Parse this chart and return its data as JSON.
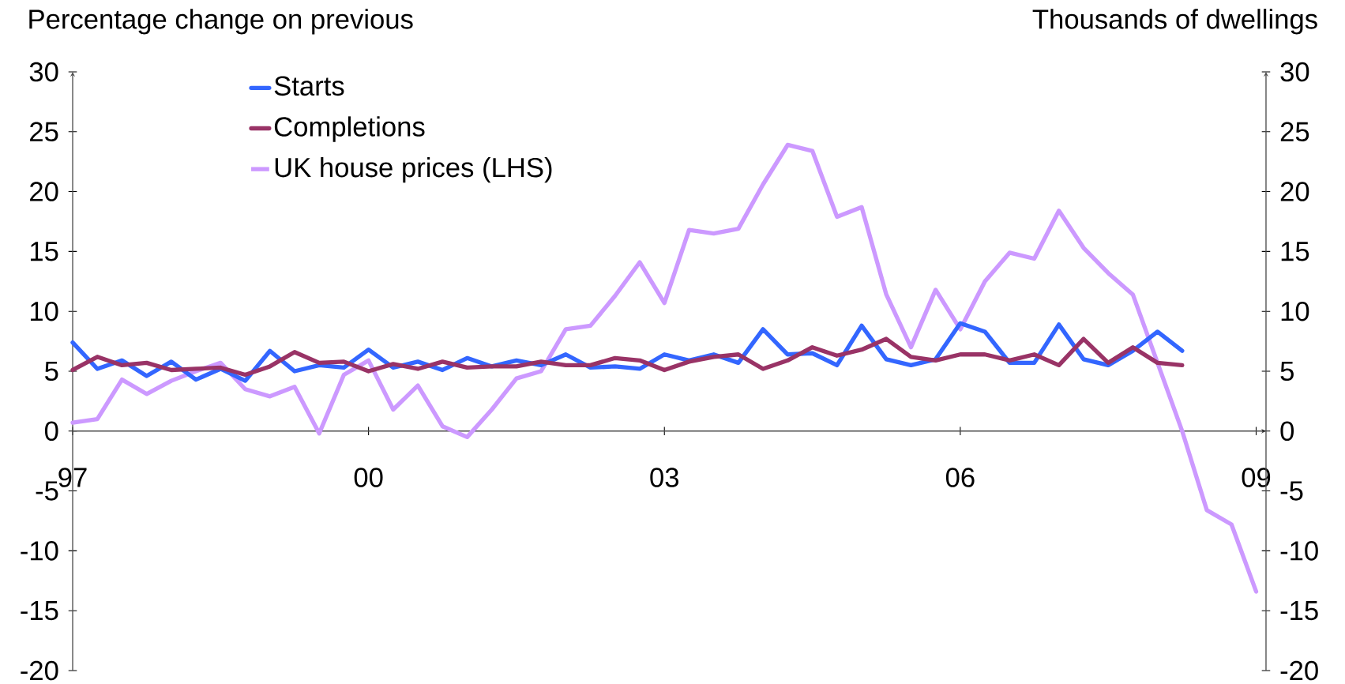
{
  "chart_data": {
    "type": "line",
    "ylabel": "Percentage change on previous",
    "y2label": "Thousands of dwellings",
    "x": [
      1997,
      1997.25,
      1997.5,
      1997.75,
      1998,
      1998.25,
      1998.5,
      1998.75,
      1999,
      1999.25,
      1999.5,
      1999.75,
      2000,
      2000.25,
      2000.5,
      2000.75,
      2001,
      2001.25,
      2001.5,
      2001.75,
      2002,
      2002.25,
      2002.5,
      2002.75,
      2003,
      2003.25,
      2003.5,
      2003.75,
      2004,
      2004.25,
      2004.5,
      2004.75,
      2005,
      2005.25,
      2005.5,
      2005.75,
      2006,
      2006.25,
      2006.5,
      2006.75,
      2007,
      2007.25,
      2007.5,
      2007.75,
      2008,
      2008.25,
      2008.5,
      2008.75,
      2009
    ],
    "xlim": [
      1997,
      2009.1
    ],
    "xticks": [
      {
        "value": 1997,
        "label": "97"
      },
      {
        "value": 2000,
        "label": "00"
      },
      {
        "value": 2003,
        "label": "03"
      },
      {
        "value": 2006,
        "label": "06"
      },
      {
        "value": 2009,
        "label": "09"
      }
    ],
    "ylim": [
      -20,
      30
    ],
    "yticks": [
      -20,
      -15,
      -10,
      -5,
      0,
      5,
      10,
      15,
      20,
      25,
      30
    ],
    "y2lim": [
      -20,
      30
    ],
    "y2ticks": [
      -20,
      -15,
      -10,
      -5,
      0,
      5,
      10,
      15,
      20,
      25,
      30
    ],
    "legend": "top left",
    "series": [
      {
        "name": "Starts",
        "color": "#3366ff",
        "axis": "y2",
        "x": [
          1997,
          1997.25,
          1997.5,
          1997.75,
          1998,
          1998.25,
          1998.5,
          1998.75,
          1999,
          1999.25,
          1999.5,
          1999.75,
          2000,
          2000.25,
          2000.5,
          2000.75,
          2001,
          2001.25,
          2001.5,
          2001.75,
          2002,
          2002.25,
          2002.5,
          2002.75,
          2003,
          2003.25,
          2003.5,
          2003.75,
          2004,
          2004.25,
          2004.5,
          2004.75,
          2005,
          2005.25,
          2005.5,
          2005.75,
          2006,
          2006.25,
          2006.5,
          2006.75,
          2007,
          2007.25,
          2007.5,
          2007.75,
          2008,
          2008.25
        ],
        "values": [
          7.4,
          5.2,
          5.9,
          4.6,
          5.8,
          4.3,
          5.2,
          4.2,
          6.7,
          5.0,
          5.5,
          5.3,
          6.8,
          5.3,
          5.8,
          5.1,
          6.1,
          5.4,
          5.9,
          5.5,
          6.4,
          5.3,
          5.4,
          5.2,
          6.4,
          5.9,
          6.4,
          5.7,
          8.5,
          6.4,
          6.5,
          5.5,
          8.8,
          6.0,
          5.5,
          6.0,
          9.0,
          8.3,
          5.7,
          5.7,
          8.9,
          6.0,
          5.5,
          6.7,
          8.3,
          6.7
        ]
      },
      {
        "name": "Completions",
        "color": "#993366",
        "axis": "y2",
        "x": [
          1997,
          1997.25,
          1997.5,
          1997.75,
          1998,
          1998.25,
          1998.5,
          1998.75,
          1999,
          1999.25,
          1999.5,
          1999.75,
          2000,
          2000.25,
          2000.5,
          2000.75,
          2001,
          2001.25,
          2001.5,
          2001.75,
          2002,
          2002.25,
          2002.5,
          2002.75,
          2003,
          2003.25,
          2003.5,
          2003.75,
          2004,
          2004.25,
          2004.5,
          2004.75,
          2005,
          2005.25,
          2005.5,
          2005.75,
          2006,
          2006.25,
          2006.5,
          2006.75,
          2007,
          2007.25,
          2007.5,
          2007.75,
          2008,
          2008.25
        ],
        "values": [
          5.1,
          6.2,
          5.5,
          5.7,
          5.1,
          5.2,
          5.3,
          4.7,
          5.4,
          6.6,
          5.7,
          5.8,
          5.0,
          5.6,
          5.2,
          5.8,
          5.3,
          5.4,
          5.4,
          5.8,
          5.5,
          5.5,
          6.1,
          5.9,
          5.1,
          5.8,
          6.2,
          6.4,
          5.2,
          5.9,
          7.0,
          6.3,
          6.8,
          7.7,
          6.2,
          5.9,
          6.4,
          6.4,
          5.9,
          6.4,
          5.5,
          7.7,
          5.7,
          7.0,
          5.7,
          5.5
        ]
      },
      {
        "name": "UK house prices (LHS)",
        "color": "#cc99ff",
        "values": [
          0.7,
          1.0,
          4.3,
          3.1,
          4.2,
          5.0,
          5.7,
          3.5,
          2.9,
          3.7,
          -0.2,
          4.7,
          5.9,
          1.8,
          3.8,
          0.4,
          -0.5,
          1.8,
          4.4,
          5.0,
          8.5,
          8.8,
          11.3,
          14.1,
          10.7,
          16.8,
          16.5,
          16.9,
          20.6,
          23.9,
          23.4,
          17.9,
          18.7,
          11.4,
          7.0,
          11.8,
          8.5,
          12.5,
          14.9,
          14.4,
          18.4,
          15.3,
          13.2,
          11.4,
          5.7,
          0.0,
          -6.6,
          -7.8,
          -13.4
        ]
      }
    ]
  }
}
